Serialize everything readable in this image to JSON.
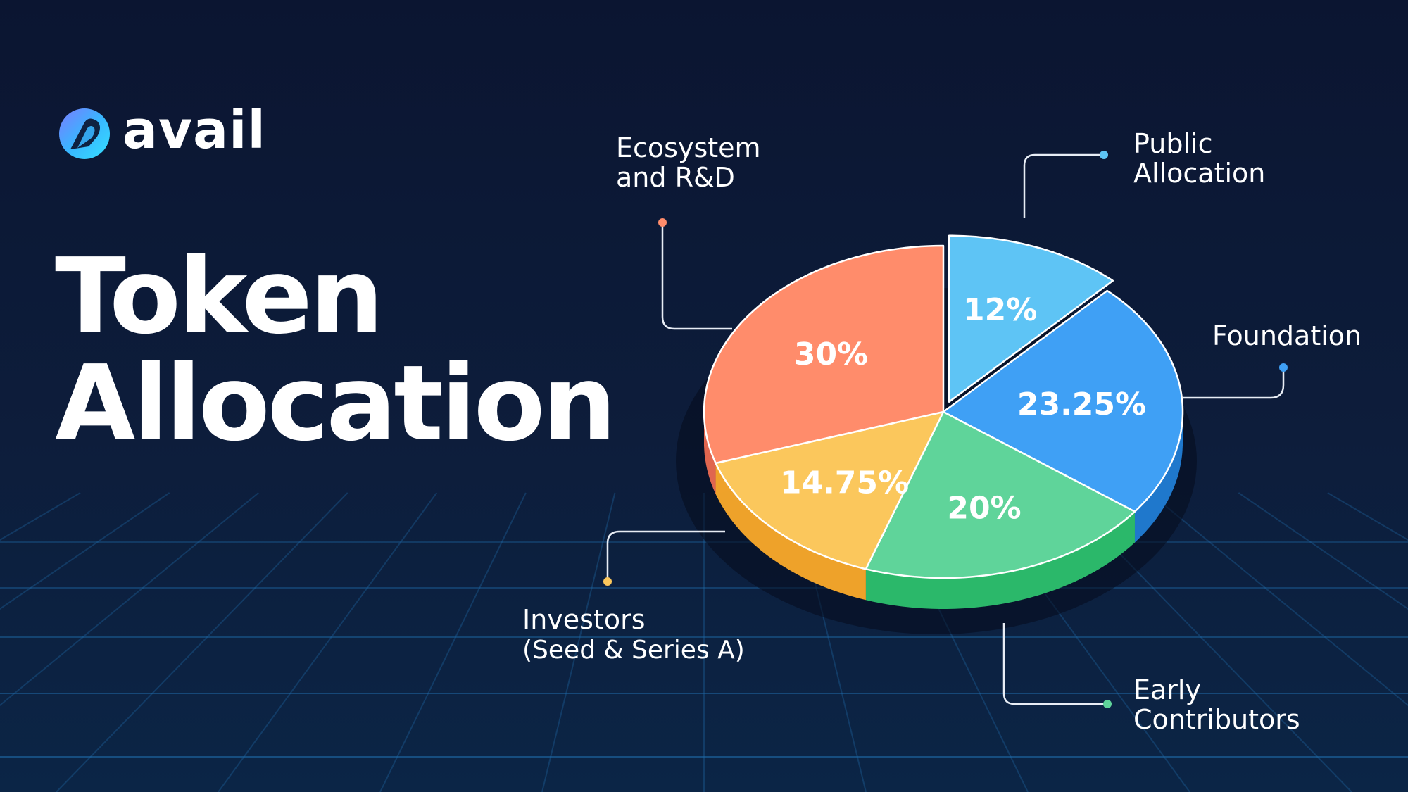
{
  "brand": {
    "name": "avail",
    "logo": "avail-logo-icon"
  },
  "title": {
    "line1": "Token",
    "line2": "Allocation"
  },
  "colors": {
    "background": "#0b1531",
    "grid": "#1f6aa8",
    "text": "#ffffff",
    "leader": "#e8edf5"
  },
  "chart_data": {
    "type": "pie",
    "title": "Token Allocation",
    "legend": "callouts",
    "slices": [
      {
        "label_lines": [
          "Public",
          "Allocation"
        ],
        "value": 12,
        "value_label": "12%",
        "color": "#5ec4f5",
        "side_color": "#3aa3d8"
      },
      {
        "label_lines": [
          "Foundation"
        ],
        "value": 23.25,
        "value_label": "23.25%",
        "color": "#3fa0f5",
        "side_color": "#1f78cc"
      },
      {
        "label_lines": [
          "Early",
          "Contributors"
        ],
        "value": 20,
        "value_label": "20%",
        "color": "#5fd49a",
        "side_color": "#2bb86a"
      },
      {
        "label_lines": [
          "Investors",
          "(Seed & Series A)"
        ],
        "value": 14.75,
        "value_label": "14.75%",
        "color": "#fbc75c",
        "side_color": "#eea22a"
      },
      {
        "label_lines": [
          "Ecosystem",
          "and R&D"
        ],
        "value": 30,
        "value_label": "30%",
        "color": "#ff8c6b",
        "side_color": "#e0664f"
      }
    ]
  }
}
